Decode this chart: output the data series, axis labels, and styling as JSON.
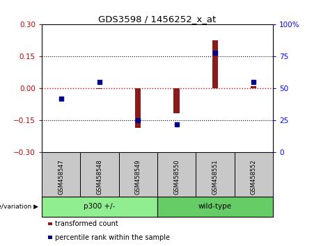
{
  "title": "GDS3598 / 1456252_x_at",
  "samples": [
    "GSM458547",
    "GSM458548",
    "GSM458549",
    "GSM458550",
    "GSM458551",
    "GSM458552"
  ],
  "transformed_count": [
    0.002,
    -0.003,
    -0.185,
    -0.115,
    0.225,
    0.01
  ],
  "percentile_rank": [
    42,
    55,
    25,
    22,
    78,
    55
  ],
  "left_ylim": [
    -0.3,
    0.3
  ],
  "right_ylim": [
    0,
    100
  ],
  "left_yticks": [
    -0.3,
    -0.15,
    0.0,
    0.15,
    0.3
  ],
  "right_yticks": [
    0,
    25,
    50,
    75,
    100
  ],
  "right_yticklabels": [
    "0",
    "25",
    "50",
    "75",
    "100%"
  ],
  "bar_color": "#8B1A1A",
  "dot_color": "#00008B",
  "hline_color": "#CC0000",
  "dotline_color": "black",
  "bar_width": 0.15,
  "dot_size": 18,
  "groups": [
    {
      "label": "p300 +/-",
      "xstart": 0,
      "xend": 3,
      "color": "#90EE90"
    },
    {
      "label": "wild-type",
      "xstart": 3,
      "xend": 6,
      "color": "#66CC66"
    }
  ],
  "group_label": "genotype/variation",
  "legend_items": [
    "transformed count",
    "percentile rank within the sample"
  ],
  "legend_colors": [
    "#8B1A1A",
    "#00008B"
  ],
  "sample_box_color": "#C8C8C8",
  "fig_width": 4.61,
  "fig_height": 3.54,
  "dpi": 100
}
